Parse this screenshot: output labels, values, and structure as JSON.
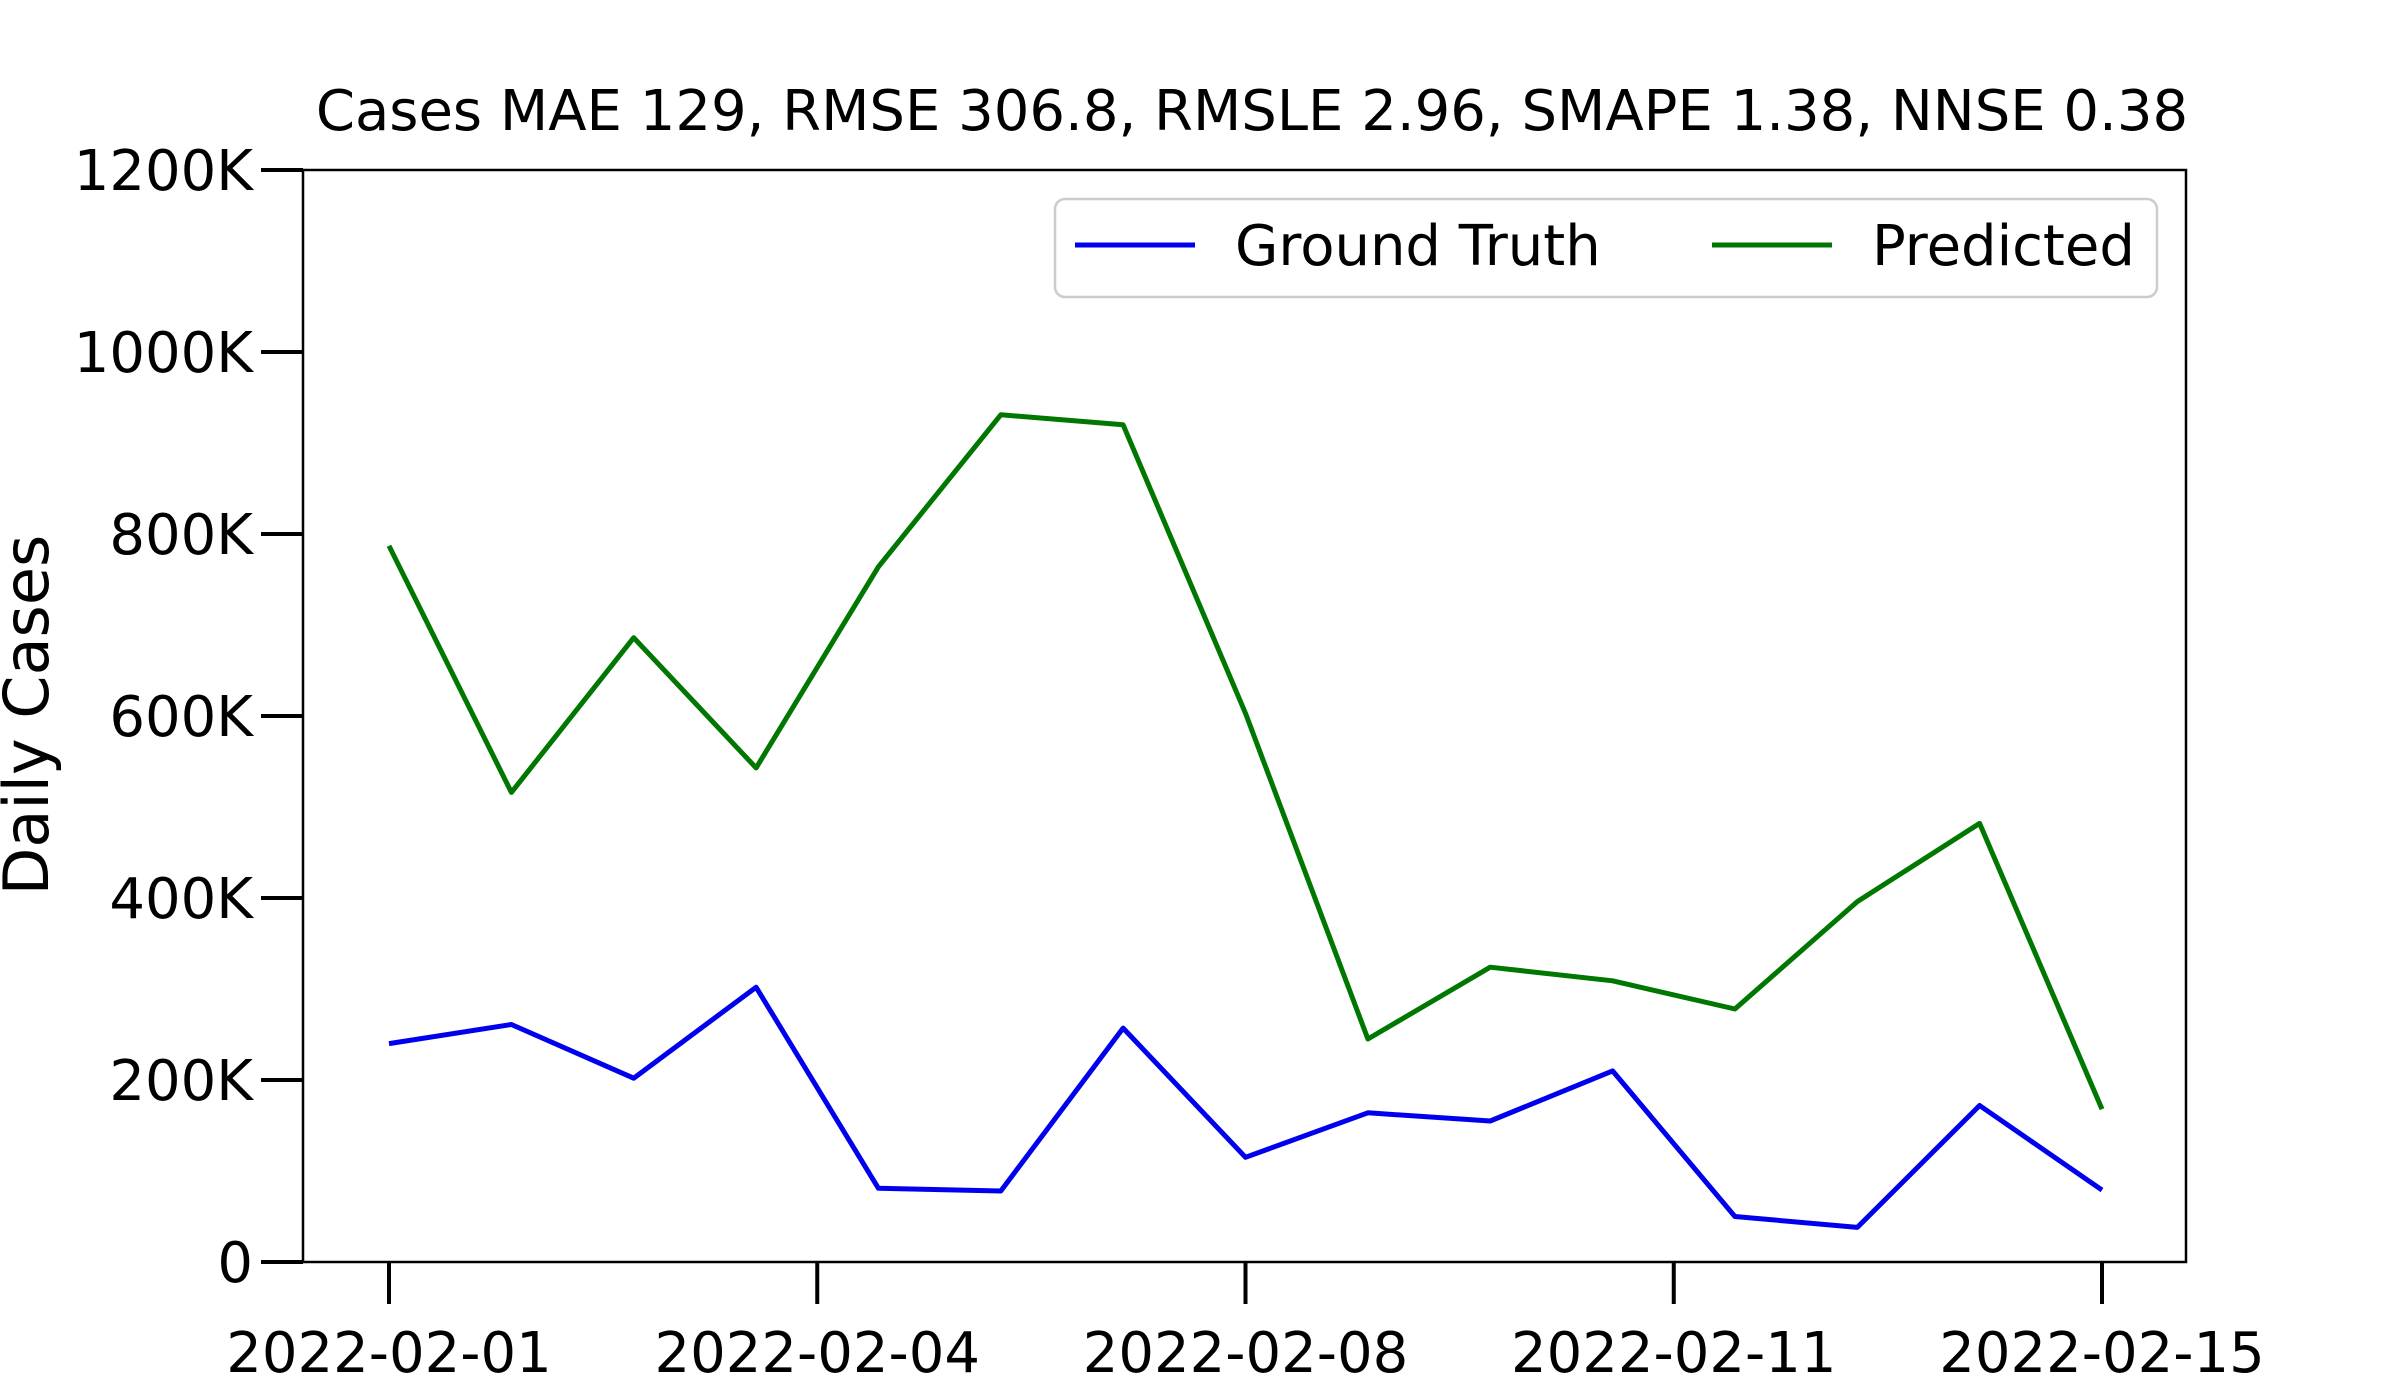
{
  "chart_data": {
    "type": "line",
    "title": "Cases MAE 129, RMSE 306.8, RMSLE 2.96, SMAPE 1.38, NNSE 0.38",
    "xlabel": "",
    "ylabel": "Daily Cases",
    "x": [
      "2022-02-01",
      "2022-02-02",
      "2022-02-03",
      "2022-02-04",
      "2022-02-05",
      "2022-02-06",
      "2022-02-07",
      "2022-02-08",
      "2022-02-09",
      "2022-02-10",
      "2022-02-11",
      "2022-02-12",
      "2022-02-13",
      "2022-02-14",
      "2022-02-15"
    ],
    "x_ticks": [
      "2022-02-01",
      "2022-02-04",
      "2022-02-08",
      "2022-02-11",
      "2022-02-15"
    ],
    "x_tick_positions": [
      0,
      3.5,
      7,
      10.5,
      14
    ],
    "ylim": [
      0,
      1200000
    ],
    "y_ticks": [
      0,
      200000,
      400000,
      600000,
      800000,
      1000000,
      1200000
    ],
    "y_tick_labels": [
      "0",
      "200K",
      "400K",
      "600K",
      "800K",
      "1000K",
      "1200K"
    ],
    "grid": false,
    "legend_position": "top-right",
    "series": [
      {
        "name": "Ground Truth",
        "color": "#0000ee",
        "values": [
          240000,
          261000,
          202000,
          302000,
          81000,
          78000,
          257000,
          115000,
          164000,
          155000,
          210000,
          50000,
          38000,
          172000,
          79000
        ]
      },
      {
        "name": "Predicted",
        "color": "#007700",
        "values": [
          787000,
          516000,
          686000,
          543000,
          764000,
          931000,
          920000,
          603000,
          245000,
          324000,
          309000,
          278000,
          396000,
          482000,
          168000
        ]
      }
    ]
  }
}
